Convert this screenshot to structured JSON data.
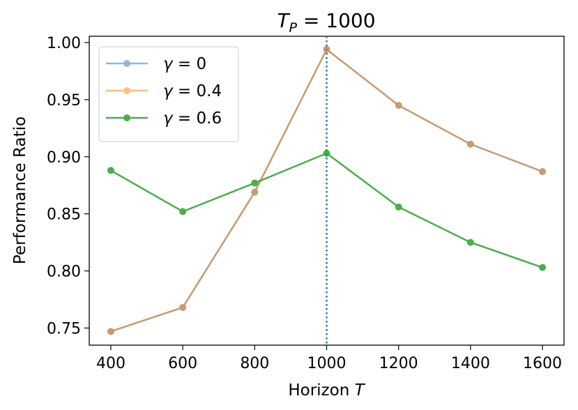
{
  "chart_data": {
    "type": "line",
    "title": "T_P = 1000",
    "title_parts": {
      "main": "T",
      "sub": "P",
      "rest": " = 1000"
    },
    "xlabel": "Horizon",
    "xlabel_var": "T",
    "ylabel": "Performance Ratio",
    "x": [
      400,
      600,
      800,
      1000,
      1200,
      1400,
      1600
    ],
    "xticks": [
      "400",
      "600",
      "800",
      "1000",
      "1200",
      "1400",
      "1600"
    ],
    "yticks": [
      "0.75",
      "0.80",
      "0.85",
      "0.90",
      "0.95",
      "1.00"
    ],
    "xlim": [
      340,
      1660
    ],
    "ylim": [
      0.735,
      1.0055
    ],
    "grid": false,
    "legend_position": "upper-left",
    "vline": {
      "x": 1000,
      "style": "dotted",
      "color": "#1f77b4"
    },
    "series": [
      {
        "name": "γ = 0",
        "symbol": "γ",
        "value_label": "= 0",
        "color": "#1f77b4",
        "alpha": 0.5,
        "values": [
          0.747,
          0.768,
          0.869,
          0.994,
          0.945,
          0.911,
          0.887
        ]
      },
      {
        "name": "γ = 0.4",
        "symbol": "γ",
        "value_label": "= 0.4",
        "color": "#ff7f0e",
        "alpha": 0.5,
        "values": [
          0.747,
          0.768,
          0.869,
          0.994,
          0.945,
          0.911,
          0.887
        ]
      },
      {
        "name": "γ = 0.6",
        "symbol": "γ",
        "value_label": "= 0.6",
        "color": "#2ca02c",
        "alpha": 0.85,
        "values": [
          0.888,
          0.852,
          0.877,
          0.903,
          0.856,
          0.825,
          0.803
        ]
      }
    ]
  }
}
